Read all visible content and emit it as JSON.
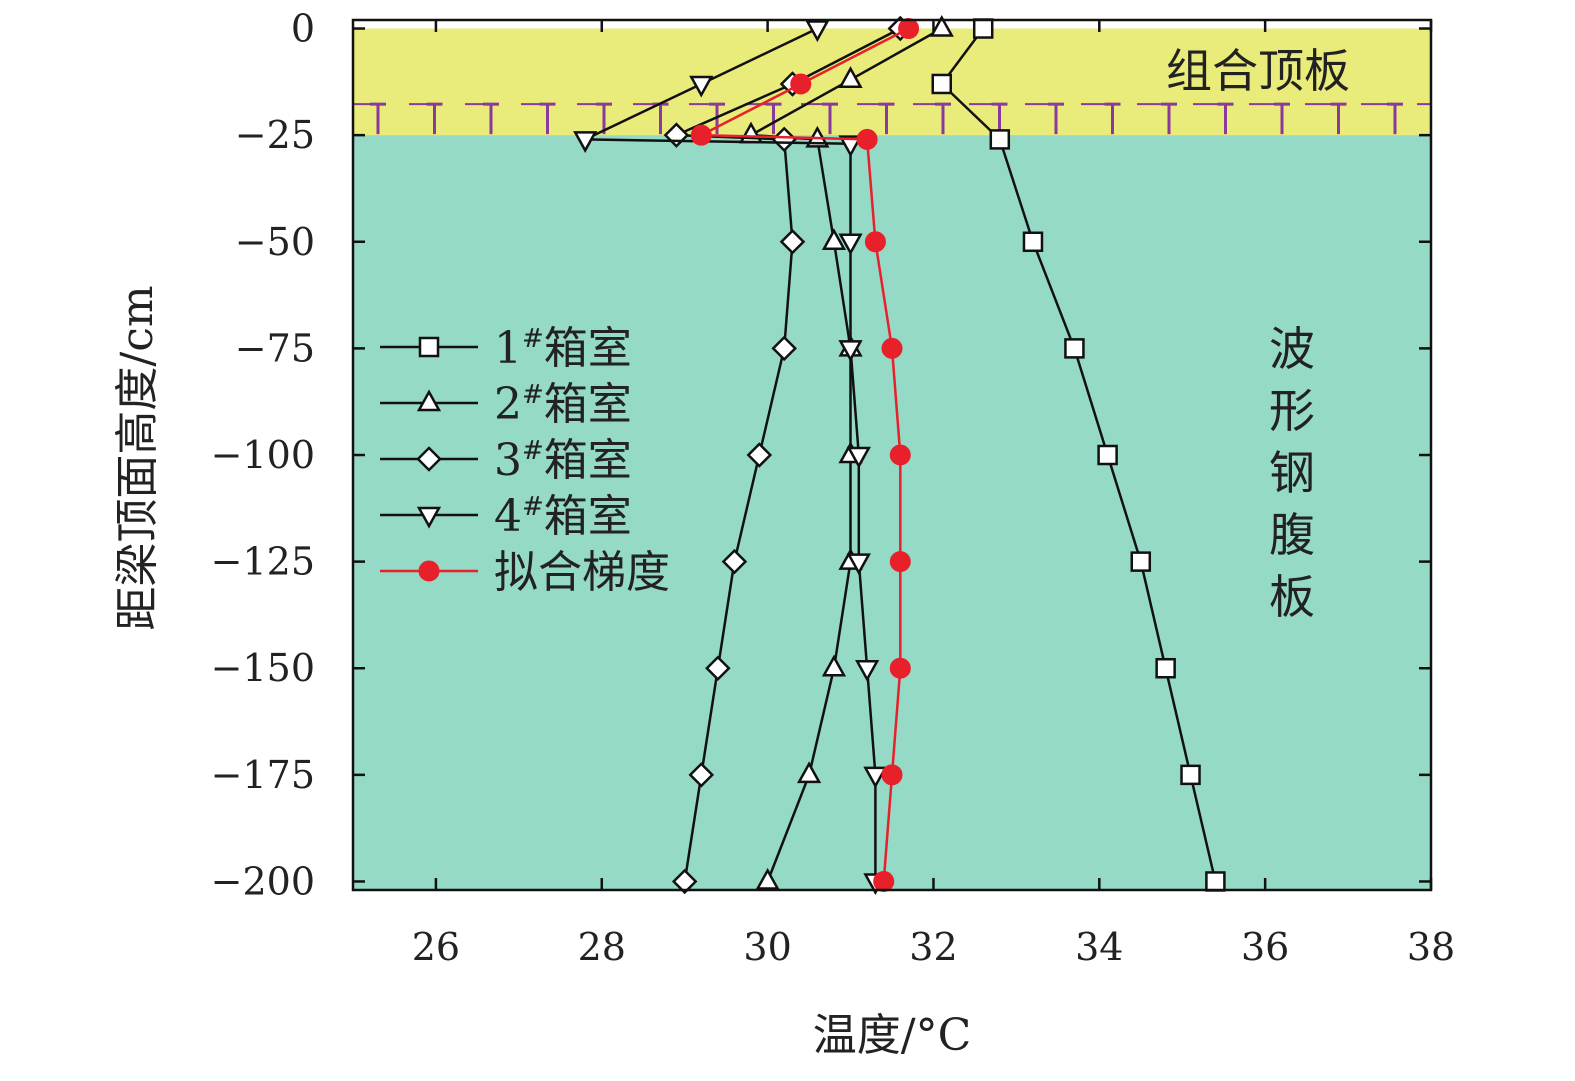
{
  "chart_data": {
    "type": "line",
    "xlabel": "温度/°C",
    "ylabel": "距梁顶面高度/cm",
    "xlim": [
      25,
      38
    ],
    "ylim": [
      -202,
      2
    ],
    "xticks": [
      26,
      28,
      30,
      32,
      34,
      36,
      38
    ],
    "yticks": [
      0,
      -25,
      -50,
      -75,
      -100,
      -125,
      -150,
      -175,
      -200
    ],
    "regions": {
      "top_slab": {
        "label": "组合顶板",
        "y_range": [
          0,
          -25
        ],
        "color": "#e9eb7a"
      },
      "web": {
        "label": "波形钢腹板",
        "y_range": [
          -25,
          -202
        ],
        "color": "#95d9c7"
      }
    },
    "series": [
      {
        "name": "1#箱室",
        "legend_label": "1#箱室",
        "marker": "square",
        "color": "#111111",
        "points": [
          [
            32.6,
            0
          ],
          [
            32.1,
            -13
          ],
          [
            32.8,
            -26
          ],
          [
            33.2,
            -50
          ],
          [
            33.7,
            -75
          ],
          [
            34.1,
            -100
          ],
          [
            34.5,
            -125
          ],
          [
            34.8,
            -150
          ],
          [
            35.1,
            -175
          ],
          [
            35.4,
            -200
          ]
        ]
      },
      {
        "name": "2#箱室",
        "legend_label": "2#箱室",
        "marker": "triangle-up",
        "color": "#111111",
        "points": [
          [
            32.1,
            0
          ],
          [
            31.0,
            -12
          ],
          [
            29.8,
            -25
          ],
          [
            30.6,
            -26
          ],
          [
            30.8,
            -50
          ],
          [
            31.0,
            -75
          ],
          [
            31.0,
            -100
          ],
          [
            31.0,
            -125
          ],
          [
            30.8,
            -150
          ],
          [
            30.5,
            -175
          ],
          [
            30.0,
            -200
          ]
        ]
      },
      {
        "name": "3#箱室",
        "legend_label": "3#箱室",
        "marker": "diamond",
        "color": "#111111",
        "points": [
          [
            31.6,
            0
          ],
          [
            30.3,
            -13
          ],
          [
            28.9,
            -25
          ],
          [
            30.2,
            -26
          ],
          [
            30.3,
            -50
          ],
          [
            30.2,
            -75
          ],
          [
            29.9,
            -100
          ],
          [
            29.6,
            -125
          ],
          [
            29.4,
            -150
          ],
          [
            29.2,
            -175
          ],
          [
            29.0,
            -200
          ]
        ]
      },
      {
        "name": "4#箱室",
        "legend_label": "4#箱室",
        "marker": "triangle-down",
        "color": "#111111",
        "points": [
          [
            30.6,
            0
          ],
          [
            29.2,
            -13
          ],
          [
            27.8,
            -26
          ],
          [
            31.0,
            -27
          ],
          [
            31.0,
            -50
          ],
          [
            31.0,
            -75
          ],
          [
            31.1,
            -100
          ],
          [
            31.1,
            -125
          ],
          [
            31.2,
            -150
          ],
          [
            31.3,
            -175
          ],
          [
            31.3,
            -200
          ]
        ]
      },
      {
        "name": "拟合梯度",
        "legend_label": "拟合梯度",
        "marker": "circle-filled",
        "color": "#e8202a",
        "points": [
          [
            31.7,
            0
          ],
          [
            30.4,
            -13
          ],
          [
            29.2,
            -25
          ],
          [
            31.2,
            -26
          ],
          [
            31.3,
            -50
          ],
          [
            31.5,
            -75
          ],
          [
            31.6,
            -100
          ],
          [
            31.6,
            -125
          ],
          [
            31.6,
            -150
          ],
          [
            31.5,
            -175
          ],
          [
            31.4,
            -200
          ]
        ]
      }
    ]
  }
}
